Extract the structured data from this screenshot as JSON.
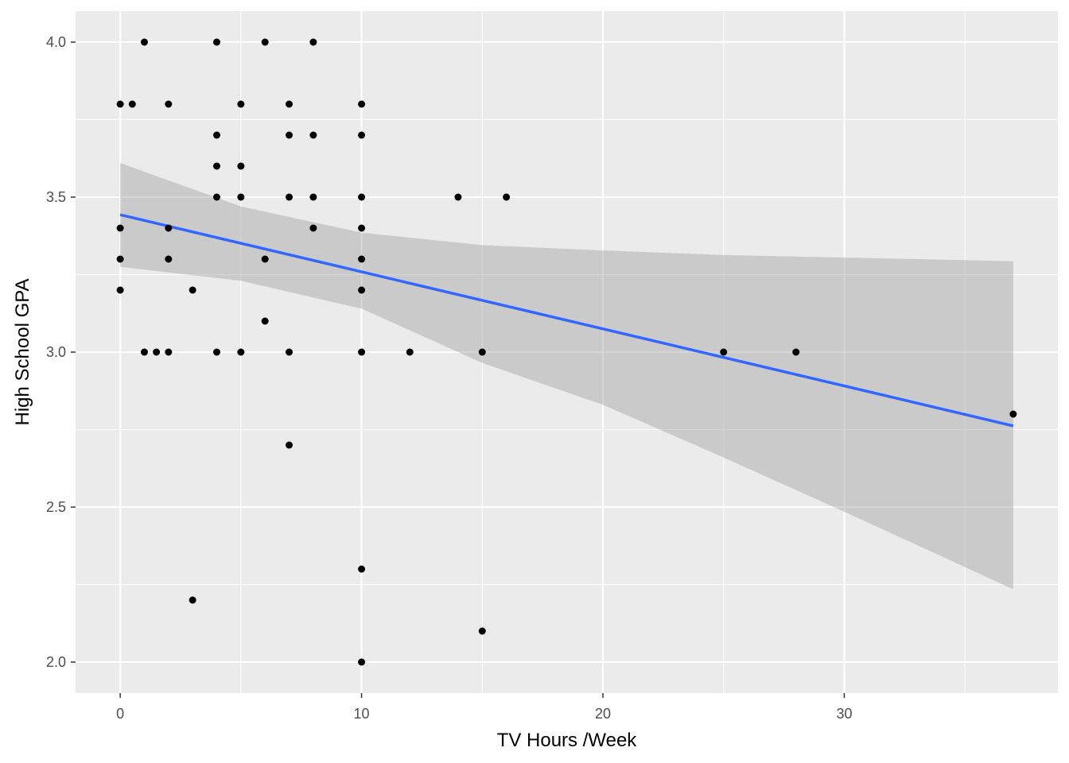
{
  "chart_data": {
    "type": "scatter",
    "xlabel": "TV Hours /Week",
    "ylabel": "High School GPA",
    "xlim": [
      -1.85,
      38.85
    ],
    "ylim": [
      1.9,
      4.1
    ],
    "x_ticks": [
      0,
      10,
      20,
      30
    ],
    "x_minor_ticks": [
      5,
      15,
      25,
      35
    ],
    "y_ticks": [
      2.0,
      2.5,
      3.0,
      3.5,
      4.0
    ],
    "y_minor_ticks": [
      2.25,
      2.75,
      3.25,
      3.75
    ],
    "x_tick_labels": [
      "0",
      "10",
      "20",
      "30"
    ],
    "y_tick_labels": [
      "2.0",
      "2.5",
      "3.0",
      "3.5",
      "4.0"
    ],
    "grid": true,
    "colors": {
      "panel_background": "#ebebeb",
      "grid": "#ffffff",
      "points": "#000000",
      "trend_line": "#3366ff",
      "confidence_band": "#999999"
    },
    "points": [
      {
        "x": 1,
        "y": 4.0
      },
      {
        "x": 4,
        "y": 4.0
      },
      {
        "x": 6,
        "y": 4.0
      },
      {
        "x": 8,
        "y": 4.0
      },
      {
        "x": 0,
        "y": 3.8
      },
      {
        "x": 0.5,
        "y": 3.8
      },
      {
        "x": 2,
        "y": 3.8
      },
      {
        "x": 5,
        "y": 3.8
      },
      {
        "x": 7,
        "y": 3.8
      },
      {
        "x": 10,
        "y": 3.8
      },
      {
        "x": 4,
        "y": 3.7
      },
      {
        "x": 7,
        "y": 3.7
      },
      {
        "x": 8,
        "y": 3.7
      },
      {
        "x": 10,
        "y": 3.7
      },
      {
        "x": 4,
        "y": 3.6
      },
      {
        "x": 5,
        "y": 3.6
      },
      {
        "x": 4,
        "y": 3.5
      },
      {
        "x": 5,
        "y": 3.5
      },
      {
        "x": 7,
        "y": 3.5
      },
      {
        "x": 8,
        "y": 3.5
      },
      {
        "x": 10,
        "y": 3.5
      },
      {
        "x": 14,
        "y": 3.5
      },
      {
        "x": 16,
        "y": 3.5
      },
      {
        "x": 0,
        "y": 3.4
      },
      {
        "x": 2,
        "y": 3.4
      },
      {
        "x": 8,
        "y": 3.4
      },
      {
        "x": 10,
        "y": 3.4
      },
      {
        "x": 0,
        "y": 3.3
      },
      {
        "x": 2,
        "y": 3.3
      },
      {
        "x": 6,
        "y": 3.3
      },
      {
        "x": 10,
        "y": 3.3
      },
      {
        "x": 0,
        "y": 3.2
      },
      {
        "x": 3,
        "y": 3.2
      },
      {
        "x": 10,
        "y": 3.2
      },
      {
        "x": 6,
        "y": 3.1
      },
      {
        "x": 1,
        "y": 3.0
      },
      {
        "x": 1.5,
        "y": 3.0
      },
      {
        "x": 2,
        "y": 3.0
      },
      {
        "x": 4,
        "y": 3.0
      },
      {
        "x": 5,
        "y": 3.0
      },
      {
        "x": 7,
        "y": 3.0
      },
      {
        "x": 10,
        "y": 3.0
      },
      {
        "x": 12,
        "y": 3.0
      },
      {
        "x": 15,
        "y": 3.0
      },
      {
        "x": 25,
        "y": 3.0
      },
      {
        "x": 28,
        "y": 3.0
      },
      {
        "x": 37,
        "y": 2.8
      },
      {
        "x": 7,
        "y": 2.7
      },
      {
        "x": 10,
        "y": 2.3
      },
      {
        "x": 3,
        "y": 2.2
      },
      {
        "x": 15,
        "y": 2.1
      },
      {
        "x": 10,
        "y": 2.0
      }
    ],
    "trend_line": {
      "method": "linear",
      "x": [
        0,
        37
      ],
      "y": [
        3.443,
        2.762
      ]
    },
    "confidence_band": {
      "x": [
        0,
        5,
        10,
        15,
        20,
        25,
        30,
        37
      ],
      "lower": [
        3.275,
        3.23,
        3.14,
        2.965,
        2.83,
        2.66,
        2.485,
        2.235
      ],
      "upper": [
        3.61,
        3.47,
        3.385,
        3.345,
        3.328,
        3.313,
        3.305,
        3.293
      ]
    }
  }
}
